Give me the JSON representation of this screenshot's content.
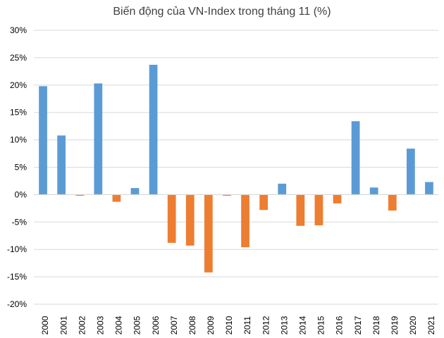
{
  "chart_data": {
    "type": "bar",
    "title": "Biến động của VN-Index trong tháng 11 (%)",
    "xlabel": "",
    "ylabel": "",
    "ylim": [
      -20,
      30
    ],
    "y_ticks": [
      30,
      25,
      20,
      15,
      10,
      5,
      0,
      -5,
      -10,
      -15,
      -20
    ],
    "y_tick_labels": [
      "30%",
      "25%",
      "20%",
      "15%",
      "10%",
      "5%",
      "0%",
      "-5%",
      "-10%",
      "-15%",
      "-20%"
    ],
    "categories": [
      "2000",
      "2001",
      "2002",
      "2003",
      "2004",
      "2005",
      "2006",
      "2007",
      "2008",
      "2009",
      "2010",
      "2011",
      "2012",
      "2013",
      "2014",
      "2015",
      "2016",
      "2017",
      "2018",
      "2019",
      "2020",
      "2021"
    ],
    "values": [
      19.8,
      10.8,
      -0.2,
      20.3,
      -1.3,
      1.2,
      23.7,
      -8.8,
      -9.3,
      -14.2,
      -0.2,
      -9.6,
      -2.8,
      2.0,
      -5.7,
      -5.6,
      -1.6,
      13.4,
      1.3,
      -2.9,
      8.4,
      2.3
    ],
    "grid": true,
    "colors": {
      "positive": "#5b9bd5",
      "negative": "#ed7d31",
      "grid": "#d9d9d9",
      "axis": "#d9d9d9"
    }
  }
}
